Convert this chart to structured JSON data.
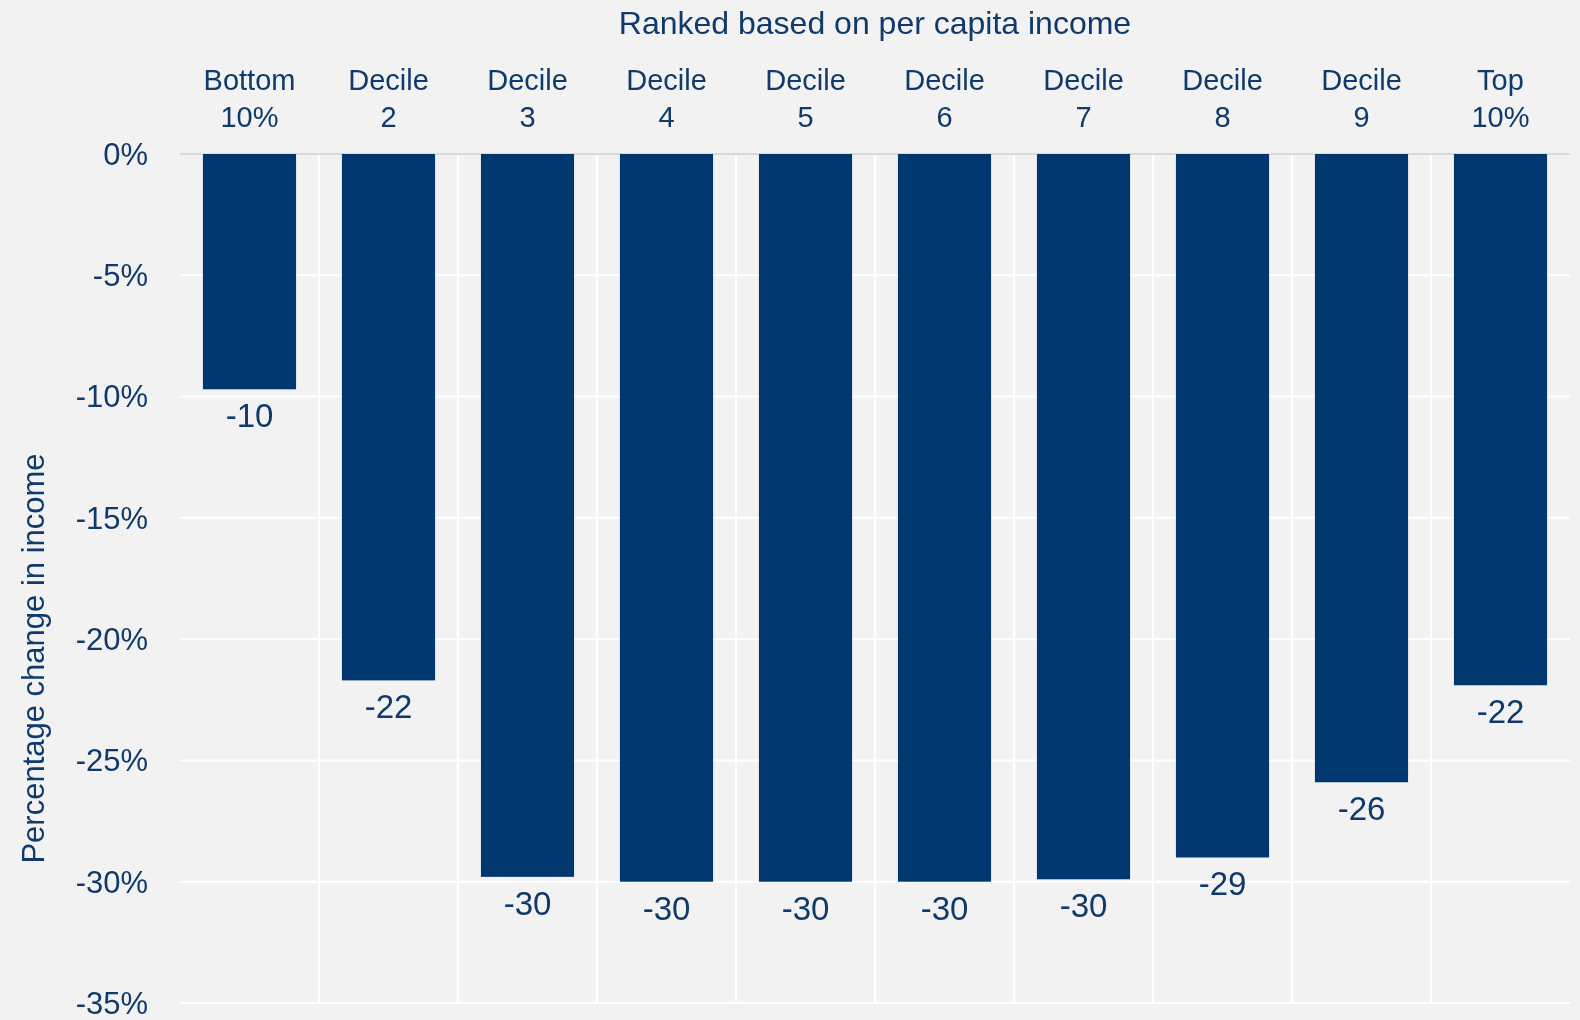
{
  "chart_data": {
    "type": "bar",
    "xlabel": "Ranked based on per capita income",
    "ylabel": "Percentage change in income",
    "categories": [
      "Bottom 10%",
      "Decile 2",
      "Decile 3",
      "Decile 4",
      "Decile 5",
      "Decile 6",
      "Decile 7",
      "Decile 8",
      "Decile 9",
      "Top 10%"
    ],
    "values": [
      -9.7,
      -21.7,
      -29.8,
      -30.0,
      -30.0,
      -30.0,
      -29.9,
      -29.0,
      -25.9,
      -21.9
    ],
    "value_labels": [
      "-10",
      "-22",
      "-30",
      "-30",
      "-30",
      "-30",
      "-30",
      "-29",
      "-26",
      "-22"
    ],
    "color": "#00376e",
    "ylim": [
      -35,
      0
    ],
    "yticks": [
      {
        "value": 0,
        "label": "0%"
      },
      {
        "value": -5,
        "label": "-5%"
      },
      {
        "value": -10,
        "label": "-10%"
      },
      {
        "value": -15,
        "label": "-15%"
      },
      {
        "value": -20,
        "label": "-20%"
      },
      {
        "value": -25,
        "label": "-25%"
      },
      {
        "value": -30,
        "label": "-30%"
      },
      {
        "value": -35,
        "label": "-35%"
      }
    ],
    "grid": true
  }
}
